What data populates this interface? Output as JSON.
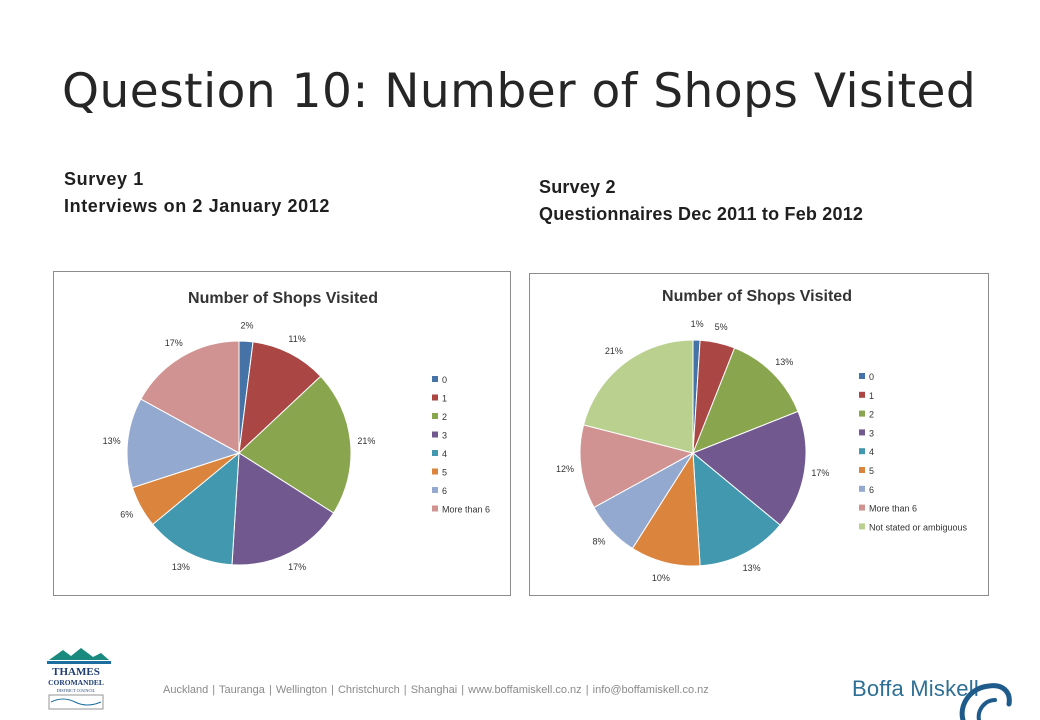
{
  "slide": {
    "title": "Question 10: Number of Shops Visited",
    "survey1": {
      "line1": "Survey 1",
      "line2": "Interviews on 2 January 2012"
    },
    "survey2": {
      "line1": "Survey 2",
      "line2": "Questionnaires Dec 2011 to Feb 2012"
    }
  },
  "footer": {
    "text": "Auckland | Tauranga | Wellington | Christchurch | Shanghai | www.boffamiskell.co.nz | info@boffamiskell.co.nz",
    "brand": "Boffa Miskell",
    "logo_lines": [
      "THAMES",
      "COROMANDEL",
      "DISTRICT COUNCIL"
    ]
  },
  "chart_data": [
    {
      "type": "pie",
      "title": "Number of Shops Visited",
      "categories": [
        "0",
        "1",
        "2",
        "3",
        "4",
        "5",
        "6",
        "More than 6"
      ],
      "values": [
        2,
        11,
        21,
        17,
        13,
        6,
        13,
        17
      ],
      "labels": [
        "2%",
        "11%",
        "21%",
        "17%",
        "13%",
        "6%",
        "13%",
        "17%"
      ],
      "colors": [
        "#4572a7",
        "#aa4643",
        "#89a54e",
        "#71588f",
        "#4198af",
        "#db843d",
        "#93a9cf",
        "#d19392"
      ],
      "legend": "right"
    },
    {
      "type": "pie",
      "title": "Number of Shops Visited",
      "categories": [
        "0",
        "1",
        "2",
        "3",
        "4",
        "5",
        "6",
        "More than 6",
        "Not stated or ambiguous"
      ],
      "values": [
        1,
        5,
        13,
        17,
        13,
        10,
        8,
        12,
        21
      ],
      "labels": [
        "1%",
        "5%",
        "13%",
        "17%",
        "13%",
        "10%",
        "8%",
        "12%",
        "21%"
      ],
      "colors": [
        "#4572a7",
        "#aa4643",
        "#89a54e",
        "#71588f",
        "#4198af",
        "#db843d",
        "#93a9cf",
        "#d19392",
        "#b9d08f"
      ],
      "legend": "right"
    }
  ]
}
